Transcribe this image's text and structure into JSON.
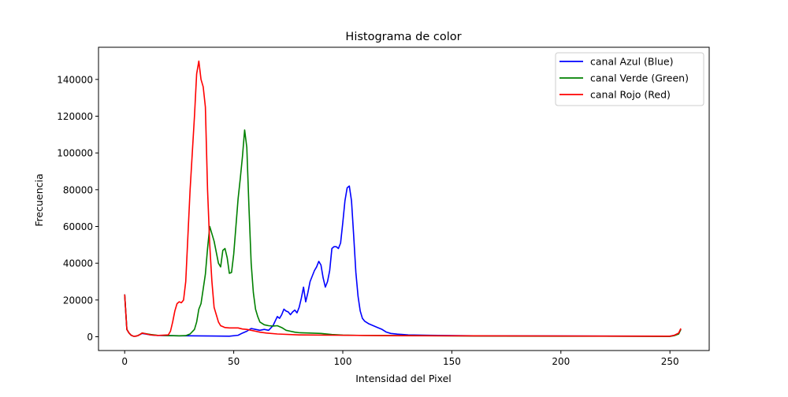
{
  "chart_data": {
    "type": "line",
    "title": "Histograma de color",
    "xlabel": "Intensidad del Pixel",
    "ylabel": "Frecuencia",
    "xlim": [
      -12,
      268
    ],
    "ylim": [
      -7500,
      157500
    ],
    "x_ticks": [
      0,
      50,
      100,
      150,
      200,
      250
    ],
    "y_ticks": [
      0,
      20000,
      40000,
      60000,
      80000,
      100000,
      120000,
      140000
    ],
    "legend_position": "top-right",
    "grid": false,
    "series": [
      {
        "name": "canal Azul (Blue)",
        "color": "#0000ff",
        "points": [
          [
            0,
            23000
          ],
          [
            1,
            4000
          ],
          [
            2,
            2000
          ],
          [
            3,
            800
          ],
          [
            4,
            300
          ],
          [
            5,
            300
          ],
          [
            6,
            600
          ],
          [
            7,
            1200
          ],
          [
            8,
            1800
          ],
          [
            10,
            1400
          ],
          [
            12,
            1000
          ],
          [
            15,
            700
          ],
          [
            20,
            600
          ],
          [
            25,
            500
          ],
          [
            30,
            500
          ],
          [
            40,
            400
          ],
          [
            48,
            300
          ],
          [
            52,
            800
          ],
          [
            54,
            2000
          ],
          [
            56,
            3000
          ],
          [
            58,
            4500
          ],
          [
            60,
            4000
          ],
          [
            62,
            3500
          ],
          [
            64,
            4000
          ],
          [
            66,
            3500
          ],
          [
            68,
            6000
          ],
          [
            70,
            11000
          ],
          [
            71,
            10000
          ],
          [
            72,
            12000
          ],
          [
            73,
            15000
          ],
          [
            74,
            14000
          ],
          [
            75,
            13500
          ],
          [
            76,
            12000
          ],
          [
            77,
            13500
          ],
          [
            78,
            14500
          ],
          [
            79,
            13000
          ],
          [
            80,
            16000
          ],
          [
            81,
            21000
          ],
          [
            82,
            27000
          ],
          [
            83,
            19000
          ],
          [
            84,
            24000
          ],
          [
            85,
            30000
          ],
          [
            86,
            33000
          ],
          [
            87,
            36000
          ],
          [
            88,
            38000
          ],
          [
            89,
            41000
          ],
          [
            90,
            39000
          ],
          [
            91,
            32000
          ],
          [
            92,
            27000
          ],
          [
            93,
            30000
          ],
          [
            94,
            36000
          ],
          [
            95,
            48000
          ],
          [
            96,
            49000
          ],
          [
            97,
            49000
          ],
          [
            98,
            48000
          ],
          [
            99,
            51000
          ],
          [
            100,
            62000
          ],
          [
            101,
            74000
          ],
          [
            102,
            81000
          ],
          [
            103,
            82000
          ],
          [
            104,
            74000
          ],
          [
            105,
            55000
          ],
          [
            106,
            35000
          ],
          [
            107,
            22000
          ],
          [
            108,
            14000
          ],
          [
            109,
            10000
          ],
          [
            110,
            8500
          ],
          [
            112,
            7000
          ],
          [
            114,
            6000
          ],
          [
            116,
            5000
          ],
          [
            118,
            4000
          ],
          [
            120,
            2500
          ],
          [
            122,
            1800
          ],
          [
            125,
            1400
          ],
          [
            130,
            1000
          ],
          [
            140,
            800
          ],
          [
            160,
            500
          ],
          [
            200,
            400
          ],
          [
            250,
            300
          ],
          [
            252,
            800
          ],
          [
            254,
            1800
          ],
          [
            255,
            4000
          ]
        ]
      },
      {
        "name": "canal Verde (Green)",
        "color": "#008000",
        "points": [
          [
            0,
            23000
          ],
          [
            1,
            4000
          ],
          [
            2,
            2000
          ],
          [
            3,
            800
          ],
          [
            4,
            300
          ],
          [
            5,
            300
          ],
          [
            6,
            600
          ],
          [
            7,
            1200
          ],
          [
            8,
            2000
          ],
          [
            10,
            1600
          ],
          [
            12,
            1200
          ],
          [
            15,
            800
          ],
          [
            20,
            600
          ],
          [
            25,
            500
          ],
          [
            28,
            600
          ],
          [
            30,
            1500
          ],
          [
            32,
            4000
          ],
          [
            33,
            8000
          ],
          [
            34,
            15000
          ],
          [
            35,
            18000
          ],
          [
            36,
            26000
          ],
          [
            37,
            34000
          ],
          [
            38,
            48000
          ],
          [
            39,
            60000
          ],
          [
            40,
            56000
          ],
          [
            41,
            52000
          ],
          [
            42,
            46000
          ],
          [
            43,
            40000
          ],
          [
            44,
            38000
          ],
          [
            45,
            47000
          ],
          [
            46,
            48000
          ],
          [
            47,
            43000
          ],
          [
            48,
            34500
          ],
          [
            49,
            35000
          ],
          [
            50,
            45000
          ],
          [
            51,
            60000
          ],
          [
            52,
            75000
          ],
          [
            53,
            86000
          ],
          [
            54,
            98000
          ],
          [
            55,
            112500
          ],
          [
            56,
            103000
          ],
          [
            57,
            70000
          ],
          [
            58,
            40000
          ],
          [
            59,
            24000
          ],
          [
            60,
            15000
          ],
          [
            61,
            11000
          ],
          [
            62,
            8000
          ],
          [
            64,
            6500
          ],
          [
            66,
            6000
          ],
          [
            68,
            5800
          ],
          [
            70,
            6000
          ],
          [
            72,
            5000
          ],
          [
            74,
            3500
          ],
          [
            76,
            3000
          ],
          [
            78,
            2500
          ],
          [
            80,
            2200
          ],
          [
            85,
            2000
          ],
          [
            90,
            1800
          ],
          [
            95,
            1200
          ],
          [
            100,
            900
          ],
          [
            110,
            700
          ],
          [
            130,
            600
          ],
          [
            160,
            400
          ],
          [
            200,
            300
          ],
          [
            250,
            200
          ],
          [
            252,
            600
          ],
          [
            254,
            1500
          ],
          [
            255,
            4000
          ]
        ]
      },
      {
        "name": "canal Rojo (Red)",
        "color": "#ff0000",
        "points": [
          [
            0,
            23000
          ],
          [
            1,
            4000
          ],
          [
            2,
            2000
          ],
          [
            3,
            800
          ],
          [
            4,
            300
          ],
          [
            5,
            300
          ],
          [
            6,
            600
          ],
          [
            7,
            1200
          ],
          [
            8,
            2000
          ],
          [
            10,
            1500
          ],
          [
            12,
            1000
          ],
          [
            15,
            700
          ],
          [
            20,
            1000
          ],
          [
            21,
            3000
          ],
          [
            22,
            8000
          ],
          [
            23,
            14000
          ],
          [
            24,
            18000
          ],
          [
            25,
            19000
          ],
          [
            26,
            18500
          ],
          [
            27,
            20000
          ],
          [
            28,
            30000
          ],
          [
            29,
            55000
          ],
          [
            30,
            80000
          ],
          [
            31,
            100000
          ],
          [
            32,
            120000
          ],
          [
            33,
            143000
          ],
          [
            34,
            150000
          ],
          [
            35,
            140000
          ],
          [
            36,
            136000
          ],
          [
            37,
            125000
          ],
          [
            38,
            80000
          ],
          [
            39,
            50000
          ],
          [
            40,
            30000
          ],
          [
            41,
            16000
          ],
          [
            42,
            12000
          ],
          [
            43,
            8000
          ],
          [
            44,
            6000
          ],
          [
            45,
            5500
          ],
          [
            46,
            5000
          ],
          [
            48,
            4800
          ],
          [
            50,
            4800
          ],
          [
            52,
            4800
          ],
          [
            54,
            4200
          ],
          [
            56,
            4000
          ],
          [
            58,
            3500
          ],
          [
            60,
            3000
          ],
          [
            62,
            2500
          ],
          [
            65,
            2000
          ],
          [
            70,
            1500
          ],
          [
            80,
            1000
          ],
          [
            100,
            800
          ],
          [
            120,
            600
          ],
          [
            150,
            500
          ],
          [
            200,
            400
          ],
          [
            250,
            300
          ],
          [
            252,
            800
          ],
          [
            254,
            2000
          ],
          [
            255,
            4500
          ]
        ]
      }
    ]
  }
}
